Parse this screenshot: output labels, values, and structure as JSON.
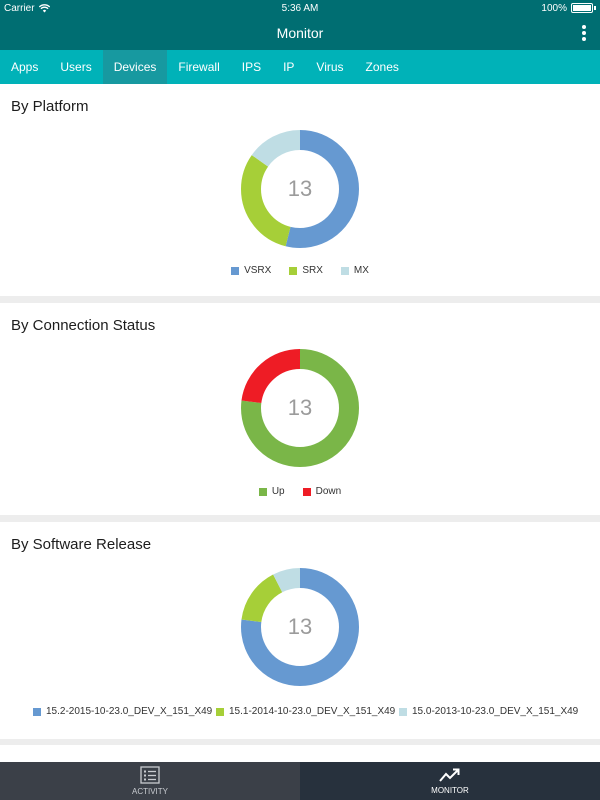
{
  "statusbar": {
    "carrier": "Carrier",
    "time": "5:36 AM",
    "battery": "100%"
  },
  "header": {
    "title": "Monitor"
  },
  "tabs": [
    {
      "label": "Apps",
      "active": false
    },
    {
      "label": "Users",
      "active": false
    },
    {
      "label": "Devices",
      "active": true
    },
    {
      "label": "Firewall",
      "active": false
    },
    {
      "label": "IPS",
      "active": false
    },
    {
      "label": "IP",
      "active": false
    },
    {
      "label": "Virus",
      "active": false
    },
    {
      "label": "Zones",
      "active": false
    }
  ],
  "cards": [
    {
      "title": "By Platform",
      "total": "13",
      "segments": [
        {
          "label": "VSRX",
          "value": 7,
          "color": "#6699d1"
        },
        {
          "label": "SRX",
          "value": 4,
          "color": "#a6cf38"
        },
        {
          "label": "MX",
          "value": 2,
          "color": "#bfdde4"
        }
      ]
    },
    {
      "title": "By Connection Status",
      "total": "13",
      "segments": [
        {
          "label": "Up",
          "value": 10,
          "color": "#7ab648"
        },
        {
          "label": "Down",
          "value": 3,
          "color": "#ee1c25"
        }
      ]
    },
    {
      "title": "By Software Release",
      "total": "13",
      "segments": [
        {
          "label": "15.2-2015-10-23.0_DEV_X_151_X49",
          "value": 10,
          "color": "#6699d1"
        },
        {
          "label": "15.1-2014-10-23.0_DEV_X_151_X49",
          "value": 2,
          "color": "#a6cf38"
        },
        {
          "label": "15.0-2013-10-23.0_DEV_X_151_X49",
          "value": 1,
          "color": "#bfdde4"
        }
      ]
    }
  ],
  "bottom_tabs": {
    "activity": "ACTIVITY",
    "monitor": "MONITOR"
  }
}
